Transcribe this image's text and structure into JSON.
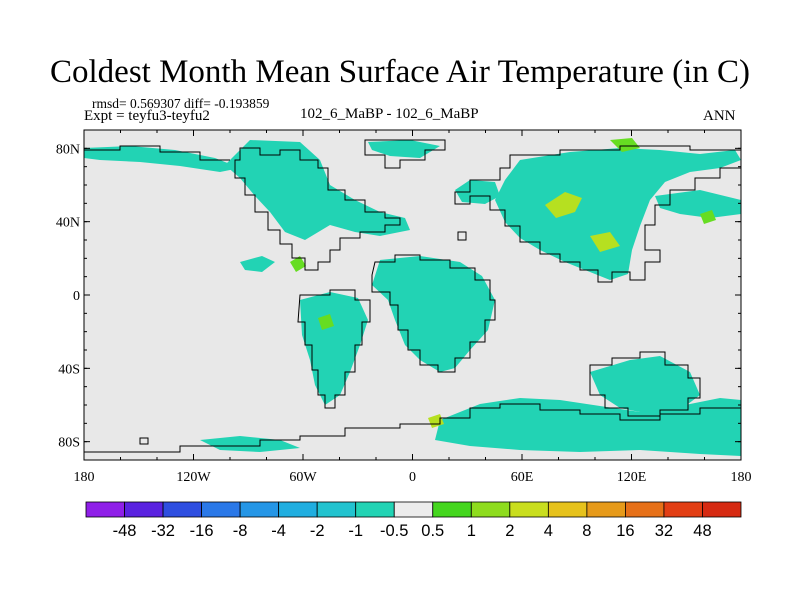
{
  "title": "Coldest Month Mean Surface Air Temperature (in C)",
  "stats_line": "rmsd= 0.569307 diff= -0.193859",
  "expt_line": "Expt = teyfu3-teyfu2",
  "case_line": "102_6_MaBP - 102_6_MaBP",
  "season": "ANN",
  "map": {
    "lon_range": [
      -180,
      180
    ],
    "lat_range": [
      -90,
      90
    ],
    "y_ticks": [
      {
        "lat": 80,
        "label": "80N"
      },
      {
        "lat": 40,
        "label": "40N"
      },
      {
        "lat": 0,
        "label": "0"
      },
      {
        "lat": -40,
        "label": "40S"
      },
      {
        "lat": -80,
        "label": "80S"
      }
    ],
    "x_ticks": [
      {
        "lon": -180,
        "label": "180"
      },
      {
        "lon": -120,
        "label": "120W"
      },
      {
        "lon": -60,
        "label": "60W"
      },
      {
        "lon": 0,
        "label": "0"
      },
      {
        "lon": 60,
        "label": "60E"
      },
      {
        "lon": 120,
        "label": "120E"
      },
      {
        "lon": 180,
        "label": "180"
      }
    ],
    "colors": {
      "background": "#e8e8e8",
      "negative_small": "#22d3b4",
      "positive_small": "#66dd22",
      "positive_medium": "#b6e020",
      "coast": "#000000"
    }
  },
  "colorbar": {
    "labels": [
      "-48",
      "-32",
      "-16",
      "-8",
      "-4",
      "-2",
      "-1",
      "-0.5",
      "0.5",
      "1",
      "2",
      "4",
      "8",
      "16",
      "32",
      "48"
    ],
    "colors": [
      "#8f1fe8",
      "#5a22e0",
      "#2e4ee0",
      "#2a78e8",
      "#2596e6",
      "#20aee0",
      "#22c3cf",
      "#22d3b4",
      "#ececec",
      "#44d61e",
      "#8edc1e",
      "#c9de1e",
      "#e6c21c",
      "#e69a1a",
      "#e67018",
      "#e23e14",
      "#d62a12"
    ]
  }
}
